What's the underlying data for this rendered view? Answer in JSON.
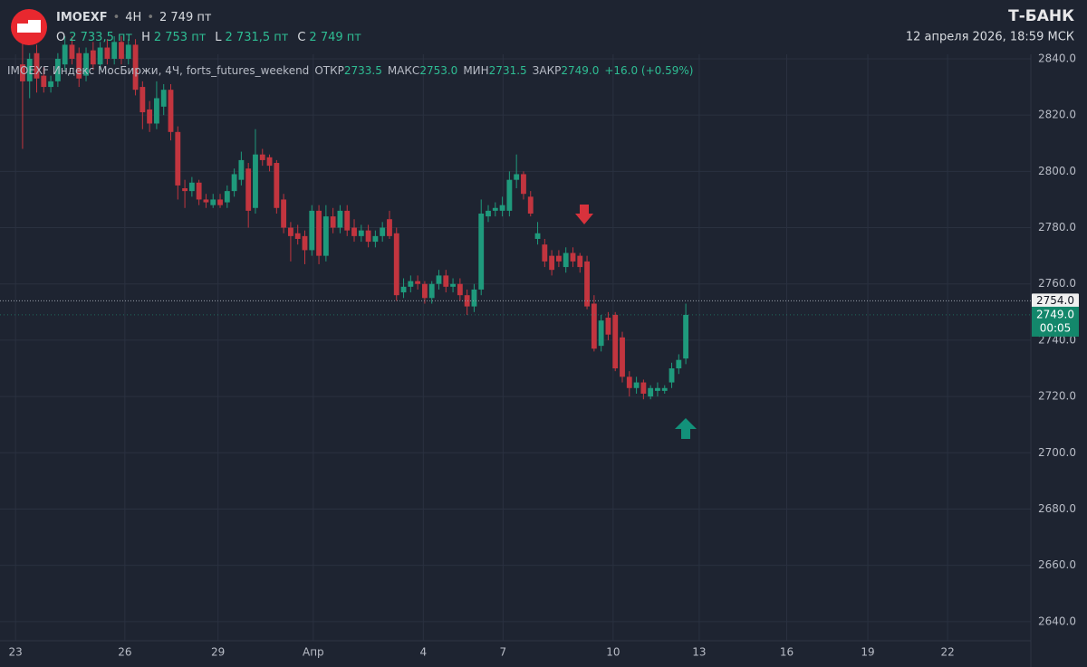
{
  "header": {
    "ticker": "IMOEXF",
    "interval": "4H",
    "price": "2 749 пт",
    "o_label": "O",
    "o": "2 733,5 пт",
    "h_label": "H",
    "h": "2 753 пт",
    "l_label": "L",
    "l": "2 731,5 пт",
    "c_label": "C",
    "c": "2 749 пт",
    "brand": "Т‑БАНК",
    "datetime": "12 апреля 2026, 18:59 МСК"
  },
  "chart_data": {
    "type": "candlestick",
    "legend": {
      "name": "IMOEXF Индекс МосБиржи, 4Ч, forts_futures_weekend",
      "open_label": "ОТКР",
      "open": "2733.5",
      "high_label": "МАКС",
      "high": "2753.0",
      "low_label": "МИН",
      "low": "2731.5",
      "close_label": "ЗАКР",
      "close": "2749.0",
      "change": "+16.0 (+0.59%)"
    },
    "categories": [
      null,
      null,
      null,
      null,
      null,
      null,
      null,
      null,
      null,
      null,
      null,
      null,
      null,
      null,
      null,
      null,
      null,
      null,
      null,
      null,
      null,
      null,
      null,
      null,
      null,
      null,
      null,
      null,
      null,
      null,
      null,
      null,
      null,
      null,
      null,
      null,
      null,
      null,
      null,
      null,
      null,
      null,
      null,
      null,
      null,
      null,
      null,
      null,
      null,
      null,
      null,
      null,
      null,
      null,
      null,
      null,
      null,
      null,
      null,
      null,
      null,
      null,
      null,
      null,
      null,
      null,
      null,
      null,
      null,
      null,
      null,
      null,
      null,
      null,
      null,
      null,
      null,
      null,
      null,
      null,
      null,
      null,
      null,
      null,
      null,
      null,
      null,
      null,
      null,
      null,
      null,
      null,
      null,
      null,
      null
    ],
    "open": [
      2838,
      2832,
      2842,
      2834,
      2830,
      2832,
      2838,
      2845,
      2842,
      2834,
      2843,
      2838,
      2844,
      2840,
      2846,
      2840,
      2845,
      2830,
      2822,
      2817,
      2823,
      2829,
      2814,
      2794,
      2793,
      2796,
      2790,
      2788,
      2790,
      2789,
      2793,
      2797,
      2801,
      2787,
      2806,
      2805,
      2803,
      2790,
      2780,
      2778,
      2777,
      2772,
      2786,
      2770,
      2784,
      2780,
      2786,
      2780,
      2777,
      2779,
      2775,
      2777,
      2783,
      2778,
      2757,
      2759,
      2761,
      2760,
      2755,
      2760,
      2763,
      2759,
      2760,
      2756,
      2752,
      2758,
      2784,
      2786,
      2786,
      2786,
      2797,
      2799,
      2791,
      2776,
      2774,
      2770,
      2770,
      2766,
      2771,
      2770,
      2768,
      2753,
      2738,
      2748,
      2749,
      2741,
      2727,
      2723,
      2725,
      2720,
      2722,
      2722,
      2725,
      2730,
      2733.5
    ],
    "high": [
      2846,
      2842,
      2845,
      2837,
      2834,
      2842,
      2848,
      2848,
      2844,
      2844,
      2846,
      2846,
      2847,
      2848,
      2848,
      2847,
      2847,
      2832,
      2825,
      2832,
      2831,
      2831,
      2816,
      2797,
      2798,
      2797,
      2792,
      2792,
      2792,
      2795,
      2801,
      2807,
      2803,
      2815,
      2808,
      2806,
      2804,
      2792,
      2782,
      2781,
      2779,
      2788,
      2788,
      2788,
      2787,
      2788,
      2788,
      2783,
      2781,
      2781,
      2779,
      2782,
      2786,
      2780,
      2762,
      2763,
      2763,
      2761,
      2761,
      2765,
      2765,
      2762,
      2762,
      2758,
      2760,
      2790,
      2788,
      2789,
      2791,
      2800,
      2806,
      2800,
      2793,
      2782,
      2776,
      2772,
      2772,
      2773,
      2773,
      2771,
      2770,
      2756,
      2749,
      2750,
      2750,
      2743,
      2729,
      2727,
      2726,
      2724,
      2725,
      2724,
      2732,
      2735,
      2753
    ],
    "low": [
      2808,
      2826,
      2828,
      2828,
      2828,
      2830,
      2836,
      2838,
      2830,
      2832,
      2836,
      2836,
      2838,
      2838,
      2838,
      2838,
      2827,
      2815,
      2814,
      2815,
      2820,
      2811,
      2790,
      2787,
      2791,
      2788,
      2787,
      2787,
      2787,
      2787,
      2791,
      2795,
      2780,
      2785,
      2802,
      2800,
      2785,
      2778,
      2768,
      2774,
      2767,
      2770,
      2767,
      2768,
      2778,
      2778,
      2777,
      2775,
      2775,
      2773,
      2773,
      2775,
      2776,
      2754,
      2755,
      2757,
      2758,
      2753,
      2753,
      2758,
      2757,
      2757,
      2754,
      2749,
      2750,
      2756,
      2782,
      2784,
      2784,
      2784,
      2794,
      2790,
      2784,
      2774,
      2766,
      2763,
      2766,
      2764,
      2766,
      2764,
      2751,
      2736,
      2736,
      2740,
      2729,
      2725,
      2720,
      2721,
      2719,
      2719,
      2720,
      2721,
      2723,
      2728,
      2731.5
    ],
    "close": [
      2832,
      2840,
      2833,
      2830,
      2832,
      2840,
      2845,
      2840,
      2833,
      2842,
      2838,
      2844,
      2840,
      2846,
      2840,
      2845,
      2829,
      2821,
      2817,
      2826,
      2829,
      2814,
      2795,
      2793,
      2796,
      2790,
      2789,
      2790,
      2788,
      2793,
      2799,
      2804,
      2786,
      2806,
      2804,
      2802,
      2787,
      2780,
      2777,
      2776,
      2772,
      2786,
      2770,
      2784,
      2780,
      2786,
      2779,
      2777,
      2779,
      2775,
      2777,
      2780,
      2777,
      2756,
      2759,
      2761,
      2760,
      2755,
      2760,
      2763,
      2759,
      2760,
      2756,
      2752,
      2758,
      2785,
      2786,
      2787,
      2788,
      2797,
      2799,
      2792,
      2785,
      2778,
      2768,
      2765,
      2768,
      2771,
      2768,
      2766,
      2752,
      2737,
      2747,
      2742,
      2730,
      2727,
      2723,
      2725,
      2721,
      2723,
      2723,
      2723,
      2730,
      2733,
      2749
    ],
    "up_color": "#1f9a7c",
    "down_color": "#c2353f",
    "xlim": [
      -3.2,
      142.9
    ],
    "xticks": [
      {
        "value": -1.0,
        "label": "23"
      },
      {
        "value": 14.5,
        "label": "26"
      },
      {
        "value": 27.7,
        "label": "29"
      },
      {
        "value": 41.2,
        "label": "Апр"
      },
      {
        "value": 56.8,
        "label": "4"
      },
      {
        "value": 68.1,
        "label": "7"
      },
      {
        "value": 83.7,
        "label": "10"
      },
      {
        "value": 95.9,
        "label": "13"
      },
      {
        "value": 108.3,
        "label": "16"
      },
      {
        "value": 119.8,
        "label": "19"
      },
      {
        "value": 131.1,
        "label": "22"
      }
    ],
    "ylim": [
      2633.2,
      2841.6
    ],
    "yticks": [
      {
        "value": 2640,
        "label": "2640.0"
      },
      {
        "value": 2660,
        "label": "2660.0"
      },
      {
        "value": 2680,
        "label": "2680.0"
      },
      {
        "value": 2700,
        "label": "2700.0"
      },
      {
        "value": 2720,
        "label": "2720.0"
      },
      {
        "value": 2740,
        "label": "2740.0"
      },
      {
        "value": 2760,
        "label": "2760.0"
      },
      {
        "value": 2780,
        "label": "2780.0"
      },
      {
        "value": 2800,
        "label": "2800.0"
      },
      {
        "value": 2820,
        "label": "2820.0"
      },
      {
        "value": 2840,
        "label": "2840.0"
      }
    ],
    "grid": true,
    "crosshair": {
      "value": 2754,
      "label": "2754.0"
    },
    "last_price": {
      "value": 2749,
      "label": "2749.0",
      "timer": "00:05"
    }
  }
}
